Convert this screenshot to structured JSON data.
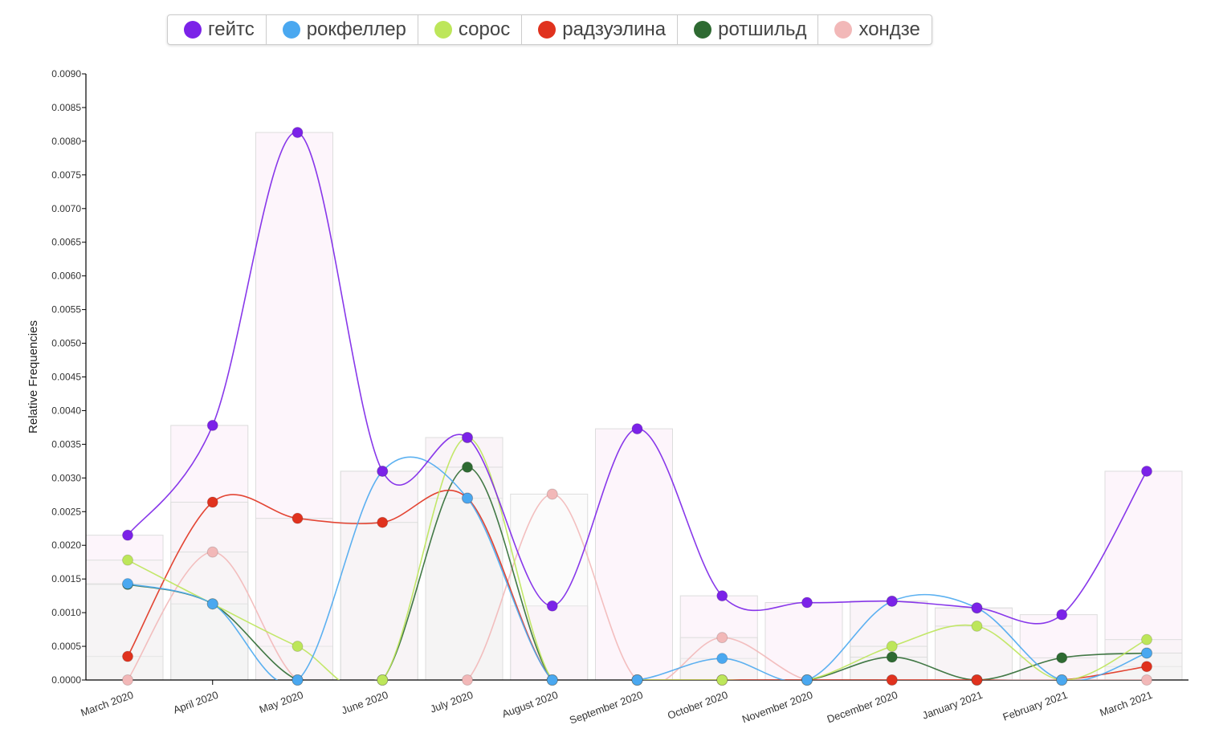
{
  "chart_data": {
    "type": "line",
    "ylabel": "Relative Frequencies",
    "xlabel": "",
    "ylim": [
      0,
      0.009
    ],
    "yticks": [
      "0.0000",
      "0.0005",
      "0.0010",
      "0.0015",
      "0.0020",
      "0.0025",
      "0.0030",
      "0.0035",
      "0.0040",
      "0.0045",
      "0.0050",
      "0.0055",
      "0.0060",
      "0.0065",
      "0.0070",
      "0.0075",
      "0.0080",
      "0.0085",
      "0.0090"
    ],
    "categories": [
      "March 2020",
      "April 2020",
      "May 2020",
      "June 2020",
      "July 2020",
      "August 2020",
      "September 2020",
      "October 2020",
      "November 2020",
      "December 2020",
      "January 2021",
      "February 2021",
      "March 2021"
    ],
    "legend_position": "top-center",
    "series": [
      {
        "name": "гейтс",
        "color": "#7b22e8",
        "values": [
          0.00215,
          0.00378,
          0.00813,
          0.0031,
          0.0036,
          0.0011,
          0.00373,
          0.00125,
          0.00115,
          0.00117,
          0.00107,
          0.00097,
          0.0031
        ]
      },
      {
        "name": "рокфеллер",
        "color": "#4aa8f0",
        "values": [
          0.00143,
          0.00113,
          0,
          0.0031,
          0.0027,
          0,
          0,
          0.00032,
          0,
          0.00117,
          0.00107,
          0,
          0.0004
        ]
      },
      {
        "name": "сорос",
        "color": "#bde65a",
        "values": [
          0.00178,
          0.00113,
          0.0005,
          0,
          0.0036,
          0,
          0,
          0,
          0,
          0.0005,
          0.0008,
          0,
          0.0006
        ]
      },
      {
        "name": "радзуэлина",
        "color": "#e0321e",
        "values": [
          0.00035,
          0.00264,
          0.0024,
          0.00234,
          0.0027,
          0,
          0,
          0,
          0,
          0,
          0,
          0,
          0.0002
        ]
      },
      {
        "name": "ротшильд",
        "color": "#2e6a32",
        "values": [
          0.00142,
          0.00113,
          0,
          0,
          0.00316,
          0,
          0,
          0,
          0,
          0.00034,
          0,
          0.00033,
          0.0004
        ]
      },
      {
        "name": "хондзе",
        "color": "#f2b8b8",
        "values": [
          0,
          0.0019,
          0,
          0,
          0,
          0.00276,
          0,
          0.00063,
          0,
          0,
          0,
          0,
          0
        ]
      }
    ]
  }
}
